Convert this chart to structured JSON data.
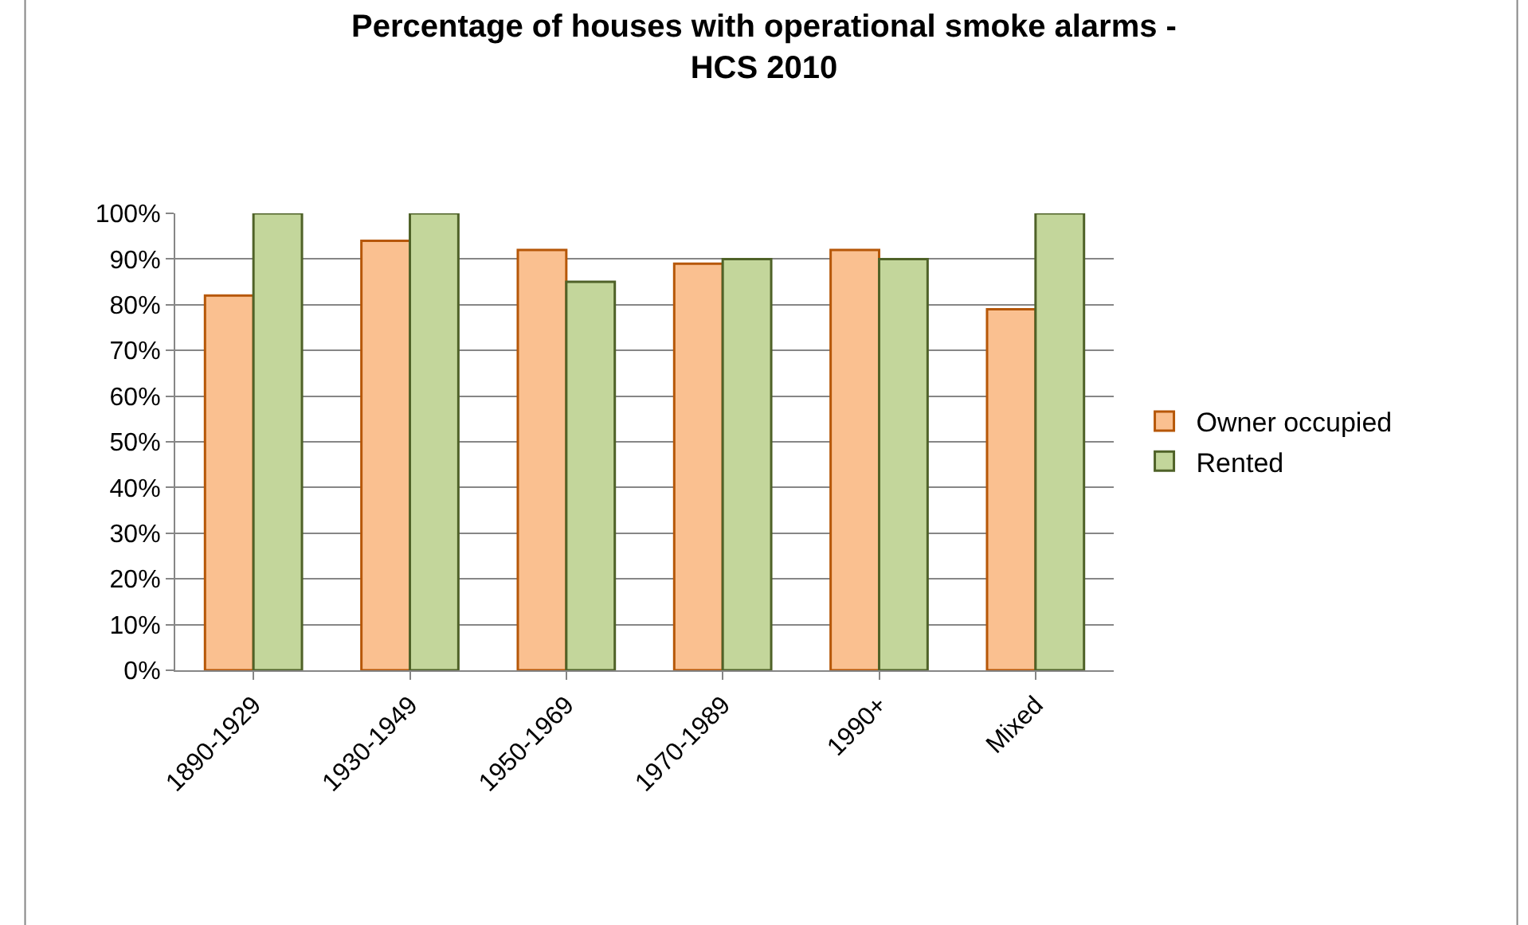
{
  "chart_data": {
    "type": "bar",
    "title": "Percentage of houses with operational smoke alarms -\nHCS 2010",
    "categories": [
      "1890-1929",
      "1930-1949",
      "1950-1969",
      "1970-1989",
      "1990+",
      "Mixed"
    ],
    "series": [
      {
        "name": "Owner occupied",
        "color": "#fac090",
        "values": [
          82,
          94,
          92,
          89,
          92,
          79
        ]
      },
      {
        "name": "Rented",
        "color": "#c3d69b",
        "values": [
          100,
          100,
          85,
          90,
          90,
          100
        ]
      }
    ],
    "ylim": [
      0,
      100
    ],
    "yticks": [
      {
        "value": 0,
        "label": "0%"
      },
      {
        "value": 10,
        "label": "10%"
      },
      {
        "value": 20,
        "label": "20%"
      },
      {
        "value": 30,
        "label": "30%"
      },
      {
        "value": 40,
        "label": "40%"
      },
      {
        "value": 50,
        "label": "50%"
      },
      {
        "value": 60,
        "label": "60%"
      },
      {
        "value": 70,
        "label": "70%"
      },
      {
        "value": 80,
        "label": "80%"
      },
      {
        "value": 90,
        "label": "90%"
      },
      {
        "value": 100,
        "label": "100%"
      }
    ],
    "grid": "y",
    "legend": "right"
  }
}
